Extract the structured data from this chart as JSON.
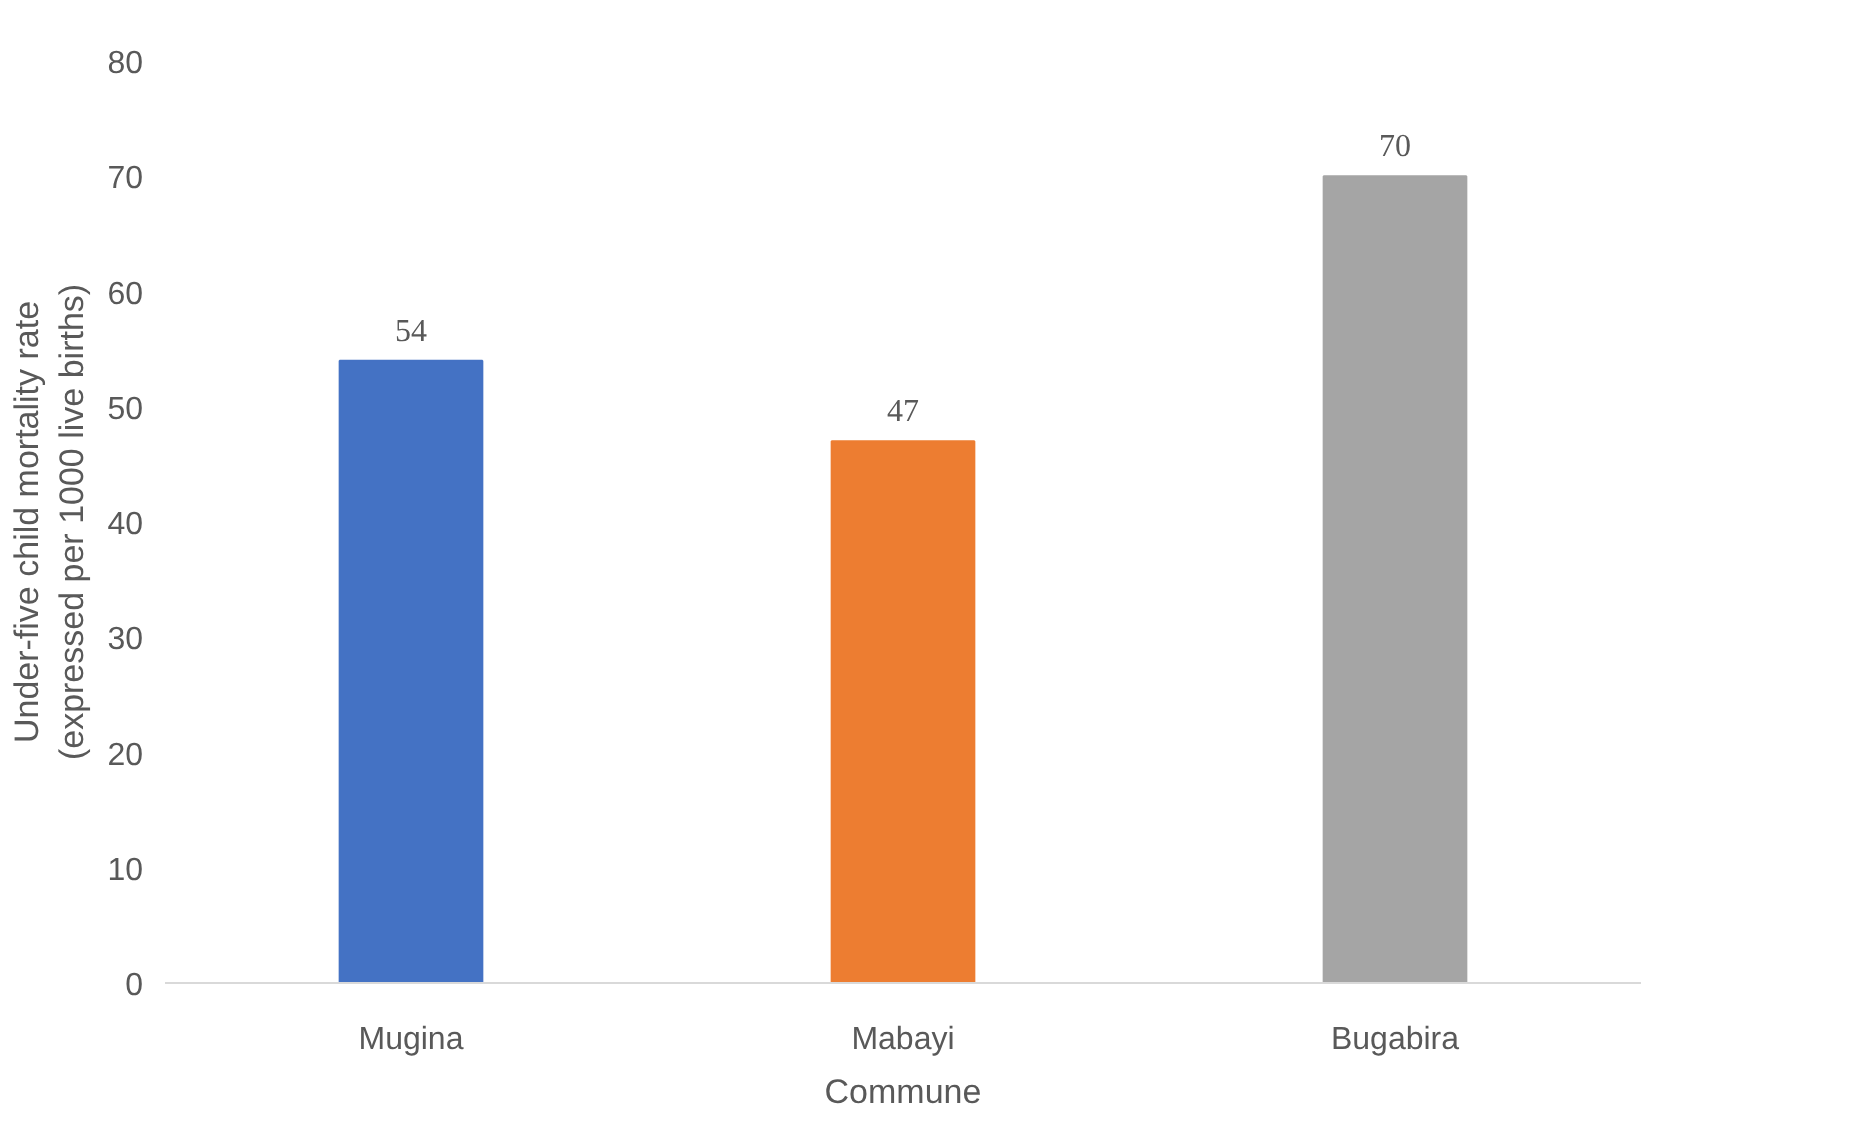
{
  "chart_data": {
    "type": "bar",
    "xlabel": "Commune",
    "ylabel": "Under-five child mortality rate\n(expressed per 1000 live births)",
    "categories": [
      "Mugina",
      "Mabayi",
      "Bugabira"
    ],
    "values": [
      54,
      47,
      70
    ],
    "colors": [
      "#4472c4",
      "#ed7d31",
      "#a5a5a5"
    ],
    "ylim": [
      0,
      80
    ],
    "yticks": [
      0,
      10,
      20,
      30,
      40,
      50,
      60,
      70,
      80
    ],
    "grid": false,
    "data_labels": true
  }
}
